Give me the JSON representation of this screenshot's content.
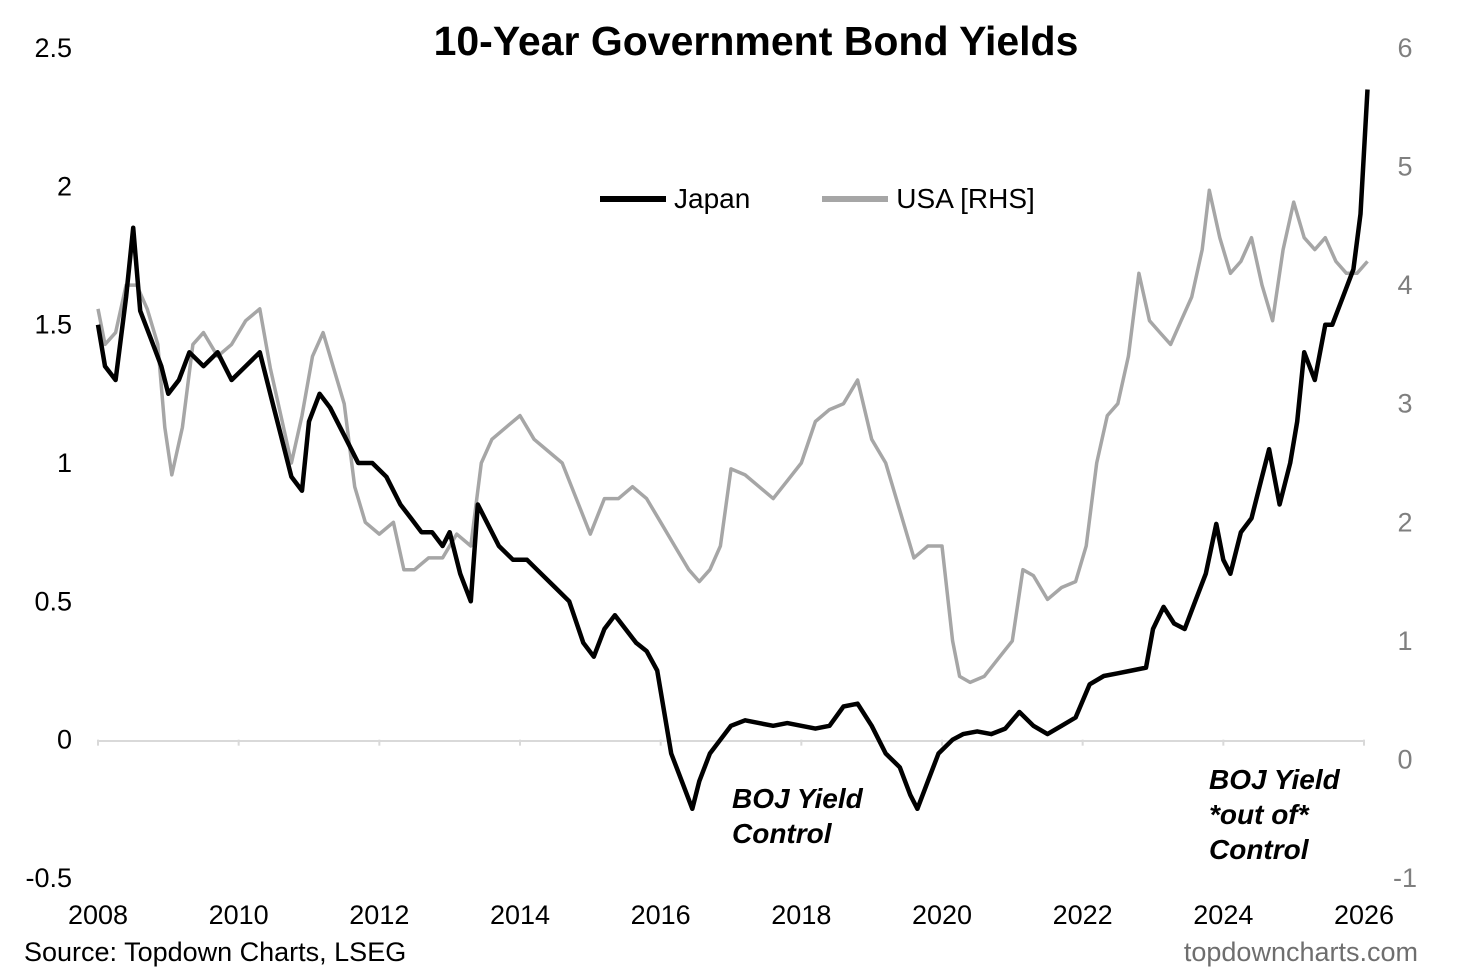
{
  "title": "10-Year Government Bond Yields",
  "source": "Source: Topdown Charts, LSEG",
  "watermark": "topdowncharts.com",
  "legend": {
    "japan": "Japan",
    "usa": "USA [RHS]"
  },
  "annotations": {
    "boj_control_line1": "BOJ Yield",
    "boj_control_line2": "Control",
    "boj_out_line1": "BOJ Yield",
    "boj_out_line2": "*out of*",
    "boj_out_line3": "Control"
  },
  "colors": {
    "japan": "#000000",
    "usa": "#a6a6a6",
    "left_axis_text": "#000000",
    "right_axis_text": "#7f7f7f",
    "axis_line": "#d9d9d9"
  },
  "chart_data": {
    "type": "line",
    "title": "10-Year Government Bond Yields",
    "xlabel": "",
    "ylabel_left": "",
    "ylabel_right": "",
    "x_range": [
      2008,
      2026
    ],
    "x_ticks": [
      2008,
      2010,
      2012,
      2014,
      2016,
      2018,
      2020,
      2022,
      2024,
      2026
    ],
    "x_tick_labels": [
      "2008",
      "2010",
      "2012",
      "2014",
      "2016",
      "2018",
      "2020",
      "2022",
      "2024",
      "2026"
    ],
    "y_left_range": [
      -0.5,
      2.5
    ],
    "y_left_ticks": [
      -0.5,
      0,
      0.5,
      1,
      1.5,
      2,
      2.5
    ],
    "y_left_tick_labels": [
      "-0.5",
      "0",
      "0.5",
      "1",
      "1.5",
      "2",
      "2.5"
    ],
    "y_right_range": [
      -1,
      6
    ],
    "y_right_ticks": [
      -1,
      0,
      1,
      2,
      3,
      4,
      5,
      6
    ],
    "y_right_tick_labels": [
      "-1",
      "0",
      "1",
      "2",
      "3",
      "4",
      "5",
      "6"
    ],
    "grid": false,
    "legend_position": "top-center",
    "series": [
      {
        "name": "Japan",
        "axis": "left",
        "x": [
          2008.0,
          2008.1,
          2008.25,
          2008.4,
          2008.5,
          2008.6,
          2008.75,
          2008.9,
          2009.0,
          2009.15,
          2009.3,
          2009.5,
          2009.7,
          2009.9,
          2010.1,
          2010.3,
          2010.5,
          2010.6,
          2010.75,
          2010.9,
          2011.0,
          2011.15,
          2011.3,
          2011.5,
          2011.7,
          2011.9,
          2012.1,
          2012.3,
          2012.45,
          2012.6,
          2012.75,
          2012.9,
          2013.0,
          2013.15,
          2013.3,
          2013.4,
          2013.5,
          2013.7,
          2013.9,
          2014.1,
          2014.3,
          2014.5,
          2014.7,
          2014.9,
          2015.05,
          2015.2,
          2015.35,
          2015.5,
          2015.65,
          2015.8,
          2015.95,
          2016.05,
          2016.15,
          2016.3,
          2016.45,
          2016.55,
          2016.7,
          2016.85,
          2017.0,
          2017.2,
          2017.4,
          2017.6,
          2017.8,
          2018.0,
          2018.2,
          2018.4,
          2018.6,
          2018.8,
          2019.0,
          2019.2,
          2019.4,
          2019.55,
          2019.65,
          2019.8,
          2019.95,
          2020.15,
          2020.3,
          2020.5,
          2020.7,
          2020.9,
          2021.1,
          2021.3,
          2021.5,
          2021.7,
          2021.9,
          2022.1,
          2022.3,
          2022.5,
          2022.7,
          2022.9,
          2023.0,
          2023.15,
          2023.3,
          2023.45,
          2023.6,
          2023.75,
          2023.9,
          2024.0,
          2024.1,
          2024.25,
          2024.4,
          2024.55,
          2024.65,
          2024.8,
          2024.95,
          2025.05,
          2025.15,
          2025.3,
          2025.45,
          2025.55,
          2025.7,
          2025.85,
          2025.95,
          2026.05
        ],
        "values": [
          1.5,
          1.35,
          1.3,
          1.6,
          1.85,
          1.55,
          1.45,
          1.35,
          1.25,
          1.3,
          1.4,
          1.35,
          1.4,
          1.3,
          1.35,
          1.4,
          1.2,
          1.1,
          0.95,
          0.9,
          1.15,
          1.25,
          1.2,
          1.1,
          1.0,
          1.0,
          0.95,
          0.85,
          0.8,
          0.75,
          0.75,
          0.7,
          0.75,
          0.6,
          0.5,
          0.85,
          0.8,
          0.7,
          0.65,
          0.65,
          0.6,
          0.55,
          0.5,
          0.35,
          0.3,
          0.4,
          0.45,
          0.4,
          0.35,
          0.32,
          0.25,
          0.1,
          -0.05,
          -0.15,
          -0.25,
          -0.15,
          -0.05,
          0.0,
          0.05,
          0.07,
          0.06,
          0.05,
          0.06,
          0.05,
          0.04,
          0.05,
          0.12,
          0.13,
          0.05,
          -0.05,
          -0.1,
          -0.2,
          -0.25,
          -0.15,
          -0.05,
          0.0,
          0.02,
          0.03,
          0.02,
          0.04,
          0.1,
          0.05,
          0.02,
          0.05,
          0.08,
          0.2,
          0.23,
          0.24,
          0.25,
          0.26,
          0.4,
          0.48,
          0.42,
          0.4,
          0.5,
          0.6,
          0.78,
          0.65,
          0.6,
          0.75,
          0.8,
          0.95,
          1.05,
          0.85,
          1.0,
          1.15,
          1.4,
          1.3,
          1.5,
          1.5,
          1.6,
          1.7,
          1.9,
          2.35
        ]
      },
      {
        "name": "USA [RHS]",
        "axis": "right",
        "x": [
          2008.0,
          2008.1,
          2008.25,
          2008.4,
          2008.55,
          2008.7,
          2008.85,
          2008.95,
          2009.05,
          2009.2,
          2009.35,
          2009.5,
          2009.7,
          2009.9,
          2010.1,
          2010.3,
          2010.45,
          2010.6,
          2010.75,
          2010.9,
          2011.05,
          2011.2,
          2011.35,
          2011.5,
          2011.65,
          2011.8,
          2012.0,
          2012.2,
          2012.35,
          2012.5,
          2012.7,
          2012.9,
          2013.1,
          2013.3,
          2013.45,
          2013.6,
          2013.8,
          2014.0,
          2014.2,
          2014.4,
          2014.6,
          2014.8,
          2015.0,
          2015.2,
          2015.4,
          2015.6,
          2015.8,
          2016.0,
          2016.2,
          2016.4,
          2016.55,
          2016.7,
          2016.85,
          2017.0,
          2017.2,
          2017.4,
          2017.6,
          2017.8,
          2018.0,
          2018.2,
          2018.4,
          2018.6,
          2018.8,
          2019.0,
          2019.2,
          2019.4,
          2019.6,
          2019.8,
          2020.0,
          2020.15,
          2020.25,
          2020.4,
          2020.6,
          2020.8,
          2021.0,
          2021.15,
          2021.3,
          2021.5,
          2021.7,
          2021.9,
          2022.05,
          2022.2,
          2022.35,
          2022.5,
          2022.65,
          2022.8,
          2022.95,
          2023.1,
          2023.25,
          2023.4,
          2023.55,
          2023.7,
          2023.8,
          2023.95,
          2024.1,
          2024.25,
          2024.4,
          2024.55,
          2024.7,
          2024.85,
          2025.0,
          2025.15,
          2025.3,
          2025.45,
          2025.6,
          2025.75,
          2025.9,
          2026.05
        ],
        "values": [
          3.8,
          3.5,
          3.6,
          4.0,
          4.0,
          3.8,
          3.5,
          2.8,
          2.4,
          2.8,
          3.5,
          3.6,
          3.4,
          3.5,
          3.7,
          3.8,
          3.3,
          2.9,
          2.5,
          2.9,
          3.4,
          3.6,
          3.3,
          3.0,
          2.3,
          2.0,
          1.9,
          2.0,
          1.6,
          1.6,
          1.7,
          1.7,
          1.9,
          1.8,
          2.5,
          2.7,
          2.8,
          2.9,
          2.7,
          2.6,
          2.5,
          2.2,
          1.9,
          2.2,
          2.2,
          2.3,
          2.2,
          2.0,
          1.8,
          1.6,
          1.5,
          1.6,
          1.8,
          2.45,
          2.4,
          2.3,
          2.2,
          2.35,
          2.5,
          2.85,
          2.95,
          3.0,
          3.2,
          2.7,
          2.5,
          2.1,
          1.7,
          1.8,
          1.8,
          1.0,
          0.7,
          0.65,
          0.7,
          0.85,
          1.0,
          1.6,
          1.55,
          1.35,
          1.45,
          1.5,
          1.8,
          2.5,
          2.9,
          3.0,
          3.4,
          4.1,
          3.7,
          3.6,
          3.5,
          3.7,
          3.9,
          4.3,
          4.8,
          4.4,
          4.1,
          4.2,
          4.4,
          4.0,
          3.7,
          4.3,
          4.7,
          4.4,
          4.3,
          4.4,
          4.2,
          4.1,
          4.1,
          4.2
        ]
      }
    ]
  }
}
